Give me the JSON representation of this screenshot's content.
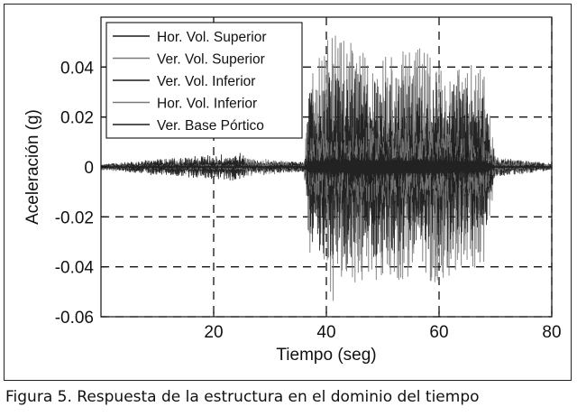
{
  "caption": "Figura 5. Respuesta de la estructura en el dominio del tiempo",
  "chart_data": {
    "type": "line",
    "xlabel": "Tiempo (seg)",
    "ylabel": "Aceleración (g)",
    "xlim": [
      0,
      80
    ],
    "ylim": [
      -0.06,
      0.06
    ],
    "xticks": [
      20,
      40,
      60,
      80
    ],
    "yticks": [
      -0.06,
      -0.04,
      -0.02,
      0,
      0.02,
      0.04
    ],
    "ytick_labels": [
      "-0.06",
      "-0.04",
      "-0.02",
      "0",
      "0.02",
      "0.04"
    ],
    "xtick_labels": [
      "20",
      "40",
      "60",
      "80"
    ],
    "grid": true,
    "grid_style": "dashed",
    "legend_position": "top-left",
    "colors": {
      "dark": "#1a1a1a",
      "gray": "#7a7a7a"
    },
    "series": [
      {
        "name": "Hor. Vol. Superior",
        "color": "#1a1a1a",
        "envelope": [
          {
            "t": 0,
            "amp": 0.0012
          },
          {
            "t": 8,
            "amp": 0.002
          },
          {
            "t": 9,
            "amp": 0.004
          },
          {
            "t": 10,
            "amp": 0.002
          },
          {
            "t": 25,
            "amp": 0.003
          },
          {
            "t": 36,
            "amp": 0.002
          },
          {
            "t": 37,
            "amp": 0.018
          },
          {
            "t": 40,
            "amp": 0.022
          },
          {
            "t": 50,
            "amp": 0.02
          },
          {
            "t": 60,
            "amp": 0.02
          },
          {
            "t": 68,
            "amp": 0.019
          },
          {
            "t": 70,
            "amp": 0.003
          },
          {
            "t": 80,
            "amp": 0.0012
          }
        ]
      },
      {
        "name": "Ver. Vol. Superior",
        "color": "#7a7a7a",
        "envelope": [
          {
            "t": 0,
            "amp": 0.0012
          },
          {
            "t": 9,
            "amp": 0.003
          },
          {
            "t": 25,
            "amp": 0.004
          },
          {
            "t": 36,
            "amp": 0.002
          },
          {
            "t": 37,
            "amp": 0.035
          },
          {
            "t": 41,
            "amp": 0.055
          },
          {
            "t": 44,
            "amp": 0.05
          },
          {
            "t": 50,
            "amp": 0.045
          },
          {
            "t": 56,
            "amp": 0.048
          },
          {
            "t": 62,
            "amp": 0.045
          },
          {
            "t": 68,
            "amp": 0.04
          },
          {
            "t": 70,
            "amp": 0.004
          },
          {
            "t": 80,
            "amp": 0.0015
          }
        ]
      },
      {
        "name": "Ver. Vol. Inferior",
        "color": "#1a1a1a",
        "envelope": [
          {
            "t": 0,
            "amp": 0.001
          },
          {
            "t": 9,
            "amp": 0.003
          },
          {
            "t": 25,
            "amp": 0.006
          },
          {
            "t": 26,
            "amp": 0.002
          },
          {
            "t": 36,
            "amp": 0.002
          },
          {
            "t": 37,
            "amp": 0.03
          },
          {
            "t": 42,
            "amp": 0.04
          },
          {
            "t": 50,
            "amp": 0.036
          },
          {
            "t": 60,
            "amp": 0.035
          },
          {
            "t": 68,
            "amp": 0.03
          },
          {
            "t": 70,
            "amp": 0.004
          },
          {
            "t": 80,
            "amp": 0.0012
          }
        ]
      },
      {
        "name": "Hor. Vol. Inferior",
        "color": "#7a7a7a",
        "envelope": [
          {
            "t": 0,
            "amp": 0.001
          },
          {
            "t": 36,
            "amp": 0.0015
          },
          {
            "t": 37,
            "amp": 0.012
          },
          {
            "t": 45,
            "amp": 0.016
          },
          {
            "t": 60,
            "amp": 0.015
          },
          {
            "t": 68,
            "amp": 0.012
          },
          {
            "t": 70,
            "amp": 0.002
          },
          {
            "t": 80,
            "amp": 0.001
          }
        ]
      },
      {
        "name": "Ver. Base Pórtico",
        "color": "#1a1a1a",
        "envelope": [
          {
            "t": 0,
            "amp": 0.0008
          },
          {
            "t": 36,
            "amp": 0.001
          },
          {
            "t": 37,
            "amp": 0.008
          },
          {
            "t": 50,
            "amp": 0.01
          },
          {
            "t": 68,
            "amp": 0.008
          },
          {
            "t": 70,
            "amp": 0.001
          },
          {
            "t": 80,
            "amp": 0.0008
          }
        ]
      }
    ]
  }
}
